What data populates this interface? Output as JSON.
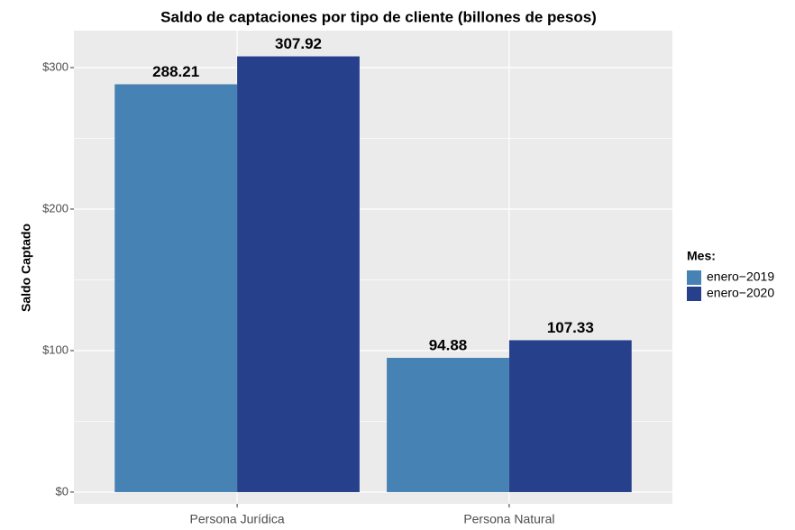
{
  "chart_data": {
    "type": "bar",
    "title": "Saldo de captaciones por tipo de cliente (billones de pesos)",
    "y_label": "Saldo Captado",
    "legend_title": "Mes:",
    "legend_position": "right",
    "categories": [
      "Persona Jurídica",
      "Persona Natural"
    ],
    "series": [
      {
        "name": "enero−2019",
        "color": "#4682b4",
        "values": [
          288.21,
          94.88
        ]
      },
      {
        "name": "enero−2020",
        "color": "#27408b",
        "values": [
          307.92,
          107.33
        ]
      }
    ],
    "ylim": [
      -8.3,
      326.1
    ],
    "yticks": [
      {
        "value": 0,
        "label": "$0"
      },
      {
        "value": 100,
        "label": "$100"
      },
      {
        "value": 200,
        "label": "$200"
      },
      {
        "value": 300,
        "label": "$300"
      }
    ],
    "yminor": [
      50,
      150,
      250
    ],
    "grid": true,
    "panel_background": "#ebebeb"
  }
}
